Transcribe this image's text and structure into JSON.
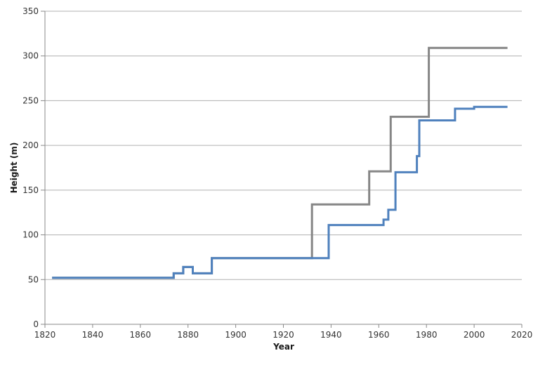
{
  "chart_data": {
    "type": "line",
    "subtype": "step",
    "title": "",
    "xlabel": "Year",
    "ylabel": "Height (m)",
    "xlim": [
      1820,
      2020
    ],
    "ylim": [
      0,
      350
    ],
    "x_ticks": [
      1820,
      1840,
      1860,
      1880,
      1900,
      1920,
      1940,
      1960,
      1980,
      2000,
      2020
    ],
    "y_ticks": [
      0,
      50,
      100,
      150,
      200,
      250,
      300,
      350
    ],
    "grid": "horizontal",
    "legend": "none",
    "axis_color": "#898989",
    "gridline_color": "#b0b0b0",
    "tick_label_color": "#333333",
    "axis_title_color": "#1a1a1a",
    "series": [
      {
        "name": "gray",
        "color": "#868686",
        "points": [
          [
            1823,
            52
          ],
          [
            1874,
            57
          ],
          [
            1878,
            64
          ],
          [
            1882,
            57
          ],
          [
            1890,
            74
          ],
          [
            1932,
            134
          ],
          [
            1956,
            171
          ],
          [
            1965,
            232
          ],
          [
            1981,
            309
          ],
          [
            2014,
            309
          ]
        ]
      },
      {
        "name": "blue",
        "color": "#4f81bd",
        "points": [
          [
            1823,
            52
          ],
          [
            1874,
            57
          ],
          [
            1878,
            64
          ],
          [
            1882,
            57
          ],
          [
            1890,
            74
          ],
          [
            1939,
            111
          ],
          [
            1962,
            117
          ],
          [
            1964,
            128
          ],
          [
            1967,
            170
          ],
          [
            1976,
            188
          ],
          [
            1977,
            228
          ],
          [
            1992,
            241
          ],
          [
            2000,
            243
          ],
          [
            2014,
            243
          ]
        ]
      }
    ]
  }
}
